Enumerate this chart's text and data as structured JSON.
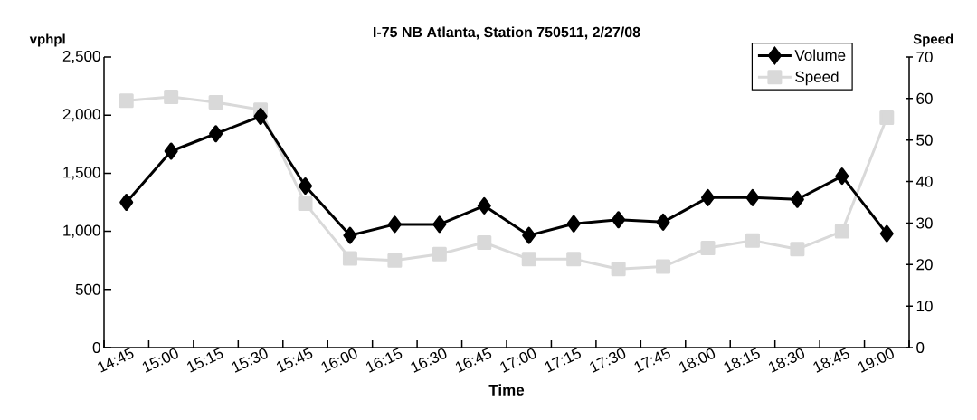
{
  "chart_data": {
    "type": "line",
    "title": "I-75 NB Atlanta, Station 750511, 2/27/08",
    "xlabel": "Time",
    "ylabel": "vphpl",
    "y2label": "Speed",
    "categories": [
      "14:45",
      "15:00",
      "15:15",
      "15:30",
      "15:45",
      "16:00",
      "16:15",
      "16:30",
      "16:45",
      "17:00",
      "17:15",
      "17:30",
      "17:45",
      "18:00",
      "18:15",
      "18:30",
      "18:45",
      "19:00"
    ],
    "series": [
      {
        "name": "Volume",
        "color": "#000000",
        "marker": "diamond",
        "values": [
          1250,
          1690,
          1840,
          1990,
          1390,
          965,
          1060,
          1060,
          1220,
          965,
          1065,
          1100,
          1080,
          1290,
          1290,
          1275,
          1475,
          980
        ]
      },
      {
        "name": "Speed",
        "color": "#d9d9d9",
        "marker": "square",
        "axis": "y2",
        "values": [
          59.5,
          60.4,
          59.1,
          57.3,
          34.7,
          21.5,
          21.0,
          22.5,
          25.3,
          21.3,
          21.3,
          18.9,
          19.5,
          24.0,
          25.8,
          23.7,
          28.0,
          55.4
        ]
      }
    ],
    "ylim": [
      0,
      2500
    ],
    "yticks": [
      0,
      500,
      {
        "value": 1000,
        "label": "1,000"
      },
      {
        "value": 1500,
        "label": "1,500"
      },
      {
        "value": 2000,
        "label": "2,000"
      },
      {
        "value": 2500,
        "label": "2,500"
      }
    ],
    "y2lim": [
      0,
      70
    ],
    "y2ticks": [
      0,
      10,
      20,
      30,
      40,
      50,
      60,
      70
    ],
    "legend": "top right",
    "line_style": "solid"
  }
}
